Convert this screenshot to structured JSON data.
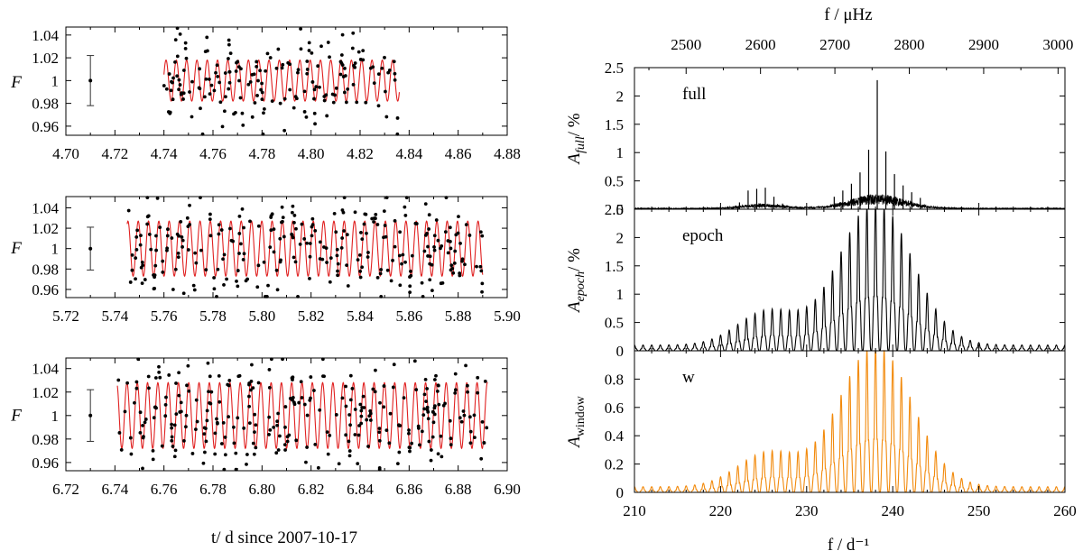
{
  "chart_data": [
    {
      "id": "lc1",
      "type": "scatter",
      "ylabel": "F",
      "xlim": [
        4.7,
        4.88
      ],
      "ylim": [
        0.952,
        1.047
      ],
      "xticks": [
        "4.70",
        "4.72",
        "4.74",
        "4.76",
        "4.78",
        "4.80",
        "4.82",
        "4.84",
        "4.86",
        "4.88"
      ],
      "yticks": [
        "1.04",
        "1.02",
        "1",
        "0.98",
        "0.96"
      ],
      "ytick_values": [
        1.04,
        1.02,
        1.0,
        0.98,
        0.96
      ],
      "errorbar": {
        "x": 4.71,
        "y": 1.0,
        "err": 0.022
      },
      "data_range": [
        4.74,
        4.836
      ],
      "model": {
        "color": "#e02020",
        "amplitude": 0.018,
        "period_d": 0.0042,
        "phase": 0.3,
        "range": [
          4.74,
          4.836
        ]
      },
      "points": {
        "color": "#000000",
        "scatter_sigma": 0.02,
        "count": 180,
        "seed": 11
      }
    },
    {
      "id": "lc2",
      "type": "scatter",
      "ylabel": "F",
      "xlim": [
        5.72,
        5.9
      ],
      "ylim": [
        0.952,
        1.051
      ],
      "xticks": [
        "5.72",
        "5.74",
        "5.76",
        "5.78",
        "5.80",
        "5.82",
        "5.84",
        "5.86",
        "5.88",
        "5.90"
      ],
      "yticks": [
        "1.04",
        "1.02",
        "1",
        "0.98",
        "0.96"
      ],
      "ytick_values": [
        1.04,
        1.02,
        1.0,
        0.98,
        0.96
      ],
      "errorbar": {
        "x": 5.73,
        "y": 1.0,
        "err": 0.021
      },
      "data_range": [
        5.745,
        5.89
      ],
      "model": {
        "color": "#e02020",
        "amplitude": 0.027,
        "period_d": 0.0042,
        "phase": 1.1,
        "range": [
          5.745,
          5.89
        ]
      },
      "points": {
        "color": "#000000",
        "scatter_sigma": 0.02,
        "count": 270,
        "seed": 23
      }
    },
    {
      "id": "lc3",
      "type": "scatter",
      "ylabel": "F",
      "xlabel": "t/ d since 2007-10-17",
      "xlim": [
        6.72,
        6.9
      ],
      "ylim": [
        0.953,
        1.049
      ],
      "xticks": [
        "6.72",
        "6.74",
        "6.76",
        "6.78",
        "6.80",
        "6.82",
        "6.84",
        "6.86",
        "6.88",
        "6.90"
      ],
      "yticks": [
        "1.04",
        "1.02",
        "1",
        "0.98",
        "0.96"
      ],
      "ytick_values": [
        1.04,
        1.02,
        1.0,
        0.98,
        0.96
      ],
      "errorbar": {
        "x": 6.73,
        "y": 1.0,
        "err": 0.022
      },
      "data_range": [
        6.741,
        6.892
      ],
      "model": {
        "color": "#e02020",
        "amplitude": 0.028,
        "period_d": 0.0042,
        "phase": 2.0,
        "range": [
          6.741,
          6.892
        ]
      },
      "points": {
        "color": "#000000",
        "scatter_sigma": 0.02,
        "count": 290,
        "seed": 37
      }
    },
    {
      "id": "ps-full",
      "type": "line",
      "label": "full",
      "ylabel_main": "A",
      "ylabel_sub": "full",
      "ylabel_unit": "/ %",
      "xlim": [
        210,
        260
      ],
      "ylim": [
        0,
        2.5
      ],
      "yticks": [
        "2.5",
        "2",
        "1.5",
        "1",
        "0.5",
        "0"
      ],
      "ytick_values": [
        2.5,
        2.0,
        1.5,
        1.0,
        0.5,
        0.0
      ],
      "top_xlabel": "f / μHz",
      "top_xticks": [
        "2500",
        "2600",
        "2700",
        "2800",
        "2900",
        "3000"
      ],
      "top_xtick_values": [
        2500,
        2600,
        2700,
        2800,
        2900,
        3000
      ],
      "color": "#000000",
      "peak": {
        "center": 238.2,
        "height": 2.28
      },
      "spikes": [
        {
          "x": 238.2,
          "y": 2.28
        },
        {
          "x": 237.2,
          "y": 1.05
        },
        {
          "x": 239.2,
          "y": 1.02
        },
        {
          "x": 236.2,
          "y": 0.65
        },
        {
          "x": 240.2,
          "y": 0.62
        },
        {
          "x": 235.2,
          "y": 0.45
        },
        {
          "x": 241.2,
          "y": 0.42
        },
        {
          "x": 234.2,
          "y": 0.33
        },
        {
          "x": 242.2,
          "y": 0.3
        },
        {
          "x": 233.2,
          "y": 0.22
        },
        {
          "x": 243.2,
          "y": 0.2
        },
        {
          "x": 224.2,
          "y": 0.36
        },
        {
          "x": 225.2,
          "y": 0.38
        },
        {
          "x": 223.2,
          "y": 0.33
        },
        {
          "x": 226.2,
          "y": 0.22
        },
        {
          "x": 222.2,
          "y": 0.12
        },
        {
          "x": 227.2,
          "y": 0.1
        }
      ]
    },
    {
      "id": "ps-epoch",
      "type": "line",
      "label": "epoch",
      "ylabel_main": "A",
      "ylabel_sub": "epoch",
      "ylabel_unit": "/ %",
      "xlim": [
        210,
        260
      ],
      "ylim": [
        0,
        2.5
      ],
      "yticks": [
        "2.5",
        "2",
        "1.5",
        "1",
        "0.5",
        "0"
      ],
      "ytick_values": [
        2.5,
        2.0,
        1.5,
        1.0,
        0.5,
        0.0
      ],
      "color": "#000000",
      "main_lobe": {
        "center": 238.0,
        "height": 2.55,
        "width": 4.2
      },
      "side_lobe": {
        "center": 225.5,
        "height": 0.6,
        "width": 3.5
      }
    },
    {
      "id": "ps-window",
      "type": "line",
      "label": "w",
      "ylabel_main": "A",
      "ylabel_sub": "window",
      "ylabel_unit": "",
      "xlabel": "f / d⁻¹",
      "xlim": [
        210,
        260
      ],
      "ylim": [
        0,
        1.0
      ],
      "xticks": [
        "210",
        "220",
        "230",
        "240",
        "250",
        "260"
      ],
      "xtick_values": [
        210,
        220,
        230,
        240,
        250,
        260
      ],
      "yticks": [
        "0.8",
        "0.6",
        "0.4",
        "0.2",
        "0"
      ],
      "ytick_values": [
        0.8,
        0.6,
        0.4,
        0.2,
        0.0
      ],
      "color": "#f28a0c",
      "main_lobe": {
        "center": 238.0,
        "height": 1.0,
        "width": 4.2
      },
      "side_lobe": {
        "center": 225.5,
        "height": 0.24,
        "width": 3.5
      }
    }
  ]
}
